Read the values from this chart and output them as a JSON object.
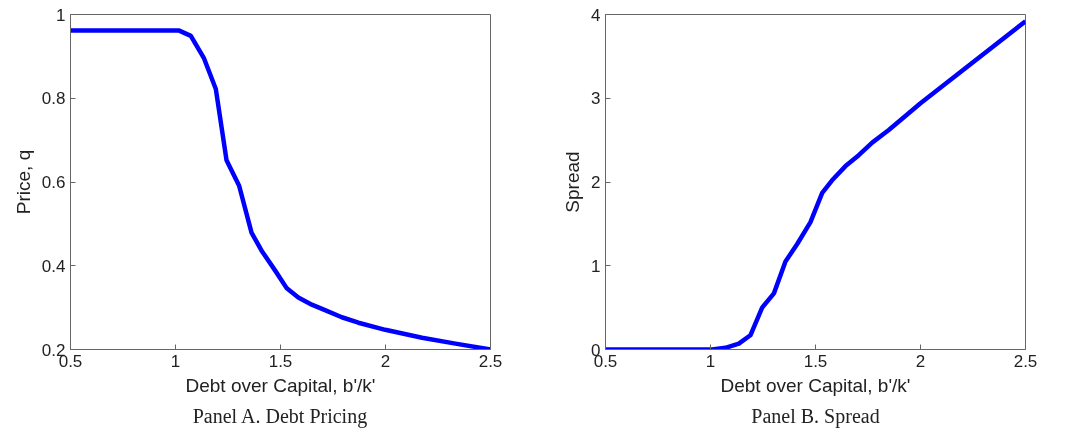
{
  "chart_data": [
    {
      "type": "line",
      "title": "Panel A. Debt Pricing",
      "xlabel": "Debt over Capital, b'/k'",
      "ylabel": "Price, q",
      "x": [
        0.5,
        1.015,
        1.073,
        1.136,
        1.192,
        1.243,
        1.303,
        1.362,
        1.41,
        1.474,
        1.53,
        1.585,
        1.649,
        1.712,
        1.792,
        1.871,
        1.999,
        2.174,
        2.333,
        2.5
      ],
      "series": [
        {
          "color": "#0000ff",
          "values": [
            0.962,
            0.962,
            0.949,
            0.895,
            0.822,
            0.652,
            0.591,
            0.479,
            0.436,
            0.389,
            0.346,
            0.324,
            0.307,
            0.294,
            0.277,
            0.264,
            0.247,
            0.228,
            0.214,
            0.2
          ]
        }
      ],
      "xlim": [
        0.5,
        2.5
      ],
      "xticks": [
        0.5,
        1,
        1.5,
        2,
        2.5
      ],
      "ylim": [
        0.2,
        1
      ],
      "yticks": [
        0.2,
        0.4,
        0.6,
        0.8,
        1
      ],
      "grid": false,
      "line_style": "solid"
    },
    {
      "type": "line",
      "title": "Panel B. Spread",
      "xlabel": "Debt over Capital, b'/k'",
      "ylabel": "Spread",
      "x": [
        0.5,
        1.008,
        1.071,
        1.135,
        1.19,
        1.246,
        1.302,
        1.357,
        1.413,
        1.476,
        1.532,
        1.579,
        1.643,
        1.706,
        1.77,
        1.849,
        2.0,
        2.5
      ],
      "series": [
        {
          "color": "#0000ff",
          "values": [
            0,
            0,
            0.02,
            0.07,
            0.17,
            0.5,
            0.67,
            1.05,
            1.26,
            1.52,
            1.87,
            2.02,
            2.19,
            2.32,
            2.47,
            2.62,
            2.94,
            3.92
          ]
        }
      ],
      "xlim": [
        0.5,
        2.5
      ],
      "xticks": [
        0.5,
        1,
        1.5,
        2,
        2.5
      ],
      "ylim": [
        0,
        4
      ],
      "yticks": [
        0,
        1,
        2,
        3,
        4
      ],
      "grid": false,
      "line_style": "solid"
    }
  ]
}
